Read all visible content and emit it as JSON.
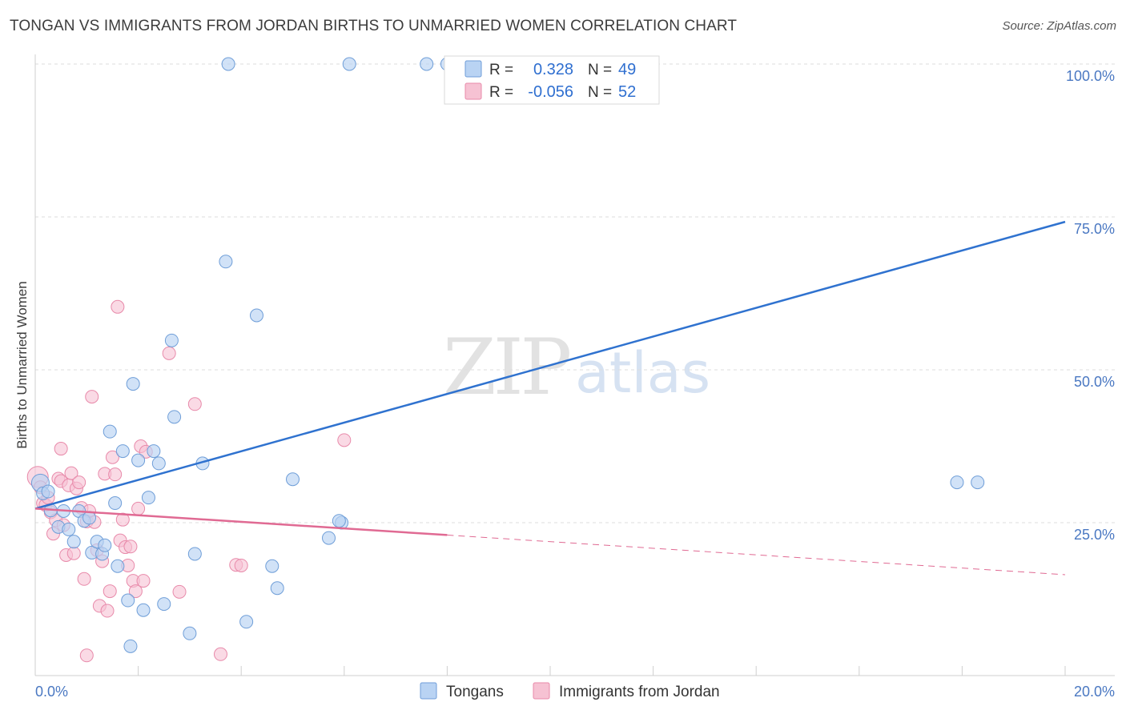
{
  "title": "TONGAN VS IMMIGRANTS FROM JORDAN BIRTHS TO UNMARRIED WOMEN CORRELATION CHART",
  "source": "Source: ZipAtlas.com",
  "watermark": {
    "part1": "ZIP",
    "part2": "atlas"
  },
  "colors": {
    "blue_fill": "#b9d3f3",
    "blue_stroke": "#6f9ed8",
    "blue_line": "#2f72cf",
    "pink_fill": "#f6c2d3",
    "pink_stroke": "#e88aaa",
    "pink_line": "#e06a93",
    "grid": "#dddddd",
    "tick_text": "#4a78c2"
  },
  "legend": {
    "rows": [
      {
        "r_label": "R =",
        "r_value": "0.328",
        "n_label": "N =",
        "n_value": "49"
      },
      {
        "r_label": "R =",
        "r_value": "-0.056",
        "n_label": "N =",
        "n_value": "52"
      }
    ]
  },
  "chart_data": {
    "type": "scatter",
    "title": "TONGAN VS IMMIGRANTS FROM JORDAN BIRTHS TO UNMARRIED WOMEN CORRELATION CHART",
    "xlabel": "",
    "ylabel": "Births to Unmarried Women",
    "xlim": [
      0,
      20
    ],
    "ylim": [
      0,
      100
    ],
    "x_tick_labels": {
      "min": "0.0%",
      "max": "20.0%"
    },
    "y_ticks": [
      {
        "value": 100,
        "label": "100.0%"
      },
      {
        "value": 75,
        "label": "75.0%"
      },
      {
        "value": 50,
        "label": "50.0%"
      },
      {
        "value": 25,
        "label": "25.0%"
      }
    ],
    "legend_position": "bottom-center",
    "series": [
      {
        "name": "Tongans",
        "r": 0.328,
        "n": 49,
        "trend": {
          "x": [
            0,
            20
          ],
          "y": [
            27.3,
            74.2
          ]
        },
        "points": [
          [
            0.1,
            31.5
          ],
          [
            0.15,
            29.8
          ],
          [
            0.25,
            30.1
          ],
          [
            0.3,
            27.0
          ],
          [
            0.45,
            24.3
          ],
          [
            0.55,
            26.9
          ],
          [
            0.65,
            23.9
          ],
          [
            0.75,
            21.9
          ],
          [
            0.85,
            26.9
          ],
          [
            0.95,
            25.3
          ],
          [
            1.05,
            25.8
          ],
          [
            1.1,
            20.1
          ],
          [
            1.2,
            21.9
          ],
          [
            1.3,
            19.9
          ],
          [
            1.35,
            21.3
          ],
          [
            1.45,
            39.9
          ],
          [
            1.55,
            28.2
          ],
          [
            1.6,
            17.9
          ],
          [
            1.7,
            36.7
          ],
          [
            1.8,
            12.3
          ],
          [
            1.9,
            47.7
          ],
          [
            2.0,
            35.2
          ],
          [
            2.1,
            10.7
          ],
          [
            2.2,
            29.1
          ],
          [
            2.3,
            36.7
          ],
          [
            2.4,
            34.7
          ],
          [
            2.5,
            11.7
          ],
          [
            2.65,
            54.8
          ],
          [
            2.7,
            42.3
          ],
          [
            3.0,
            6.9
          ],
          [
            3.1,
            19.9
          ],
          [
            3.25,
            34.7
          ],
          [
            3.7,
            67.7
          ],
          [
            3.75,
            100.0
          ],
          [
            4.1,
            8.8
          ],
          [
            4.3,
            58.9
          ],
          [
            4.6,
            17.9
          ],
          [
            4.7,
            14.3
          ],
          [
            5.0,
            32.1
          ],
          [
            5.7,
            22.5
          ],
          [
            5.95,
            25.0
          ],
          [
            6.1,
            100.0
          ],
          [
            7.6,
            100.0
          ],
          [
            8.0,
            100.0
          ],
          [
            8.1,
            100.0
          ],
          [
            1.85,
            4.8
          ],
          [
            5.9,
            25.3
          ],
          [
            17.9,
            31.6
          ],
          [
            18.3,
            31.6
          ]
        ]
      },
      {
        "name": "Immigrants from Jordan",
        "r": -0.056,
        "n": 52,
        "trend": {
          "x": [
            0,
            20
          ],
          "y": [
            27.3,
            16.5
          ]
        },
        "trend_solid_until_x": 8.0,
        "points": [
          [
            0.05,
            32.5
          ],
          [
            0.1,
            30.8
          ],
          [
            0.15,
            28.2
          ],
          [
            0.2,
            27.9
          ],
          [
            0.25,
            29.1
          ],
          [
            0.3,
            26.7
          ],
          [
            0.35,
            23.2
          ],
          [
            0.4,
            25.4
          ],
          [
            0.45,
            32.2
          ],
          [
            0.5,
            31.8
          ],
          [
            0.55,
            24.6
          ],
          [
            0.6,
            19.7
          ],
          [
            0.65,
            31.1
          ],
          [
            0.7,
            33.1
          ],
          [
            0.75,
            20.0
          ],
          [
            0.8,
            30.6
          ],
          [
            0.85,
            31.6
          ],
          [
            0.9,
            27.4
          ],
          [
            0.95,
            15.8
          ],
          [
            1.0,
            25.2
          ],
          [
            1.05,
            26.9
          ],
          [
            1.1,
            45.6
          ],
          [
            1.15,
            25.1
          ],
          [
            1.2,
            20.5
          ],
          [
            1.25,
            11.4
          ],
          [
            1.3,
            18.7
          ],
          [
            1.35,
            33.0
          ],
          [
            1.4,
            10.6
          ],
          [
            1.45,
            13.8
          ],
          [
            1.5,
            35.7
          ],
          [
            1.55,
            32.9
          ],
          [
            1.6,
            60.3
          ],
          [
            1.65,
            22.1
          ],
          [
            1.7,
            25.5
          ],
          [
            1.75,
            21.0
          ],
          [
            1.8,
            18.0
          ],
          [
            1.85,
            21.1
          ],
          [
            1.9,
            15.5
          ],
          [
            1.95,
            13.8
          ],
          [
            2.0,
            27.3
          ],
          [
            2.05,
            37.5
          ],
          [
            2.1,
            15.5
          ],
          [
            2.15,
            36.6
          ],
          [
            2.6,
            52.7
          ],
          [
            2.8,
            13.7
          ],
          [
            3.1,
            44.4
          ],
          [
            3.6,
            3.5
          ],
          [
            3.9,
            18.1
          ],
          [
            4.0,
            18.0
          ],
          [
            6.0,
            38.5
          ],
          [
            1.0,
            3.3
          ],
          [
            0.5,
            37.1
          ]
        ]
      }
    ]
  }
}
